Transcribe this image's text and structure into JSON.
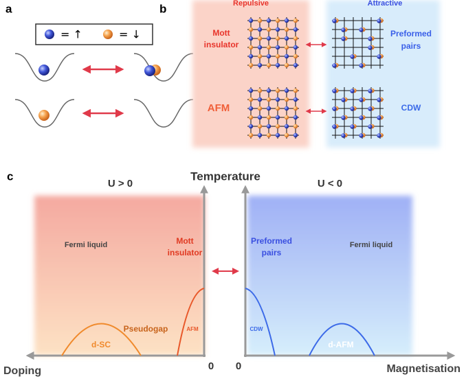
{
  "panel_a": {
    "label": "a",
    "legend": [
      "= ↑",
      "= ↓"
    ]
  },
  "panel_b": {
    "label": "b",
    "repulsive": "Repulsive",
    "attractive": "Attractive",
    "mott": [
      "Mott",
      "insulator"
    ],
    "afm": "AFM",
    "preformed": [
      "Preformed",
      "pairs"
    ],
    "cdw": "CDW"
  },
  "panel_c": {
    "label": "c",
    "y_axis": "Temperature",
    "left_title": "U > 0",
    "right_title": "U < 0",
    "left_x_axis": "Doping",
    "right_x_axis": "Magnetisation",
    "origin_left": "0",
    "origin_right": "0",
    "left": {
      "fermi": "Fermi liquid",
      "mott": [
        "Mott",
        "insulator"
      ],
      "pseudogap": "Pseudogap",
      "afm": "AFM",
      "dsc": "d-SC"
    },
    "right": {
      "fermi": "Fermi liquid",
      "preformed": [
        "Preformed",
        "pairs"
      ],
      "cdw": "CDW",
      "dafm": "d-AFM"
    }
  }
}
